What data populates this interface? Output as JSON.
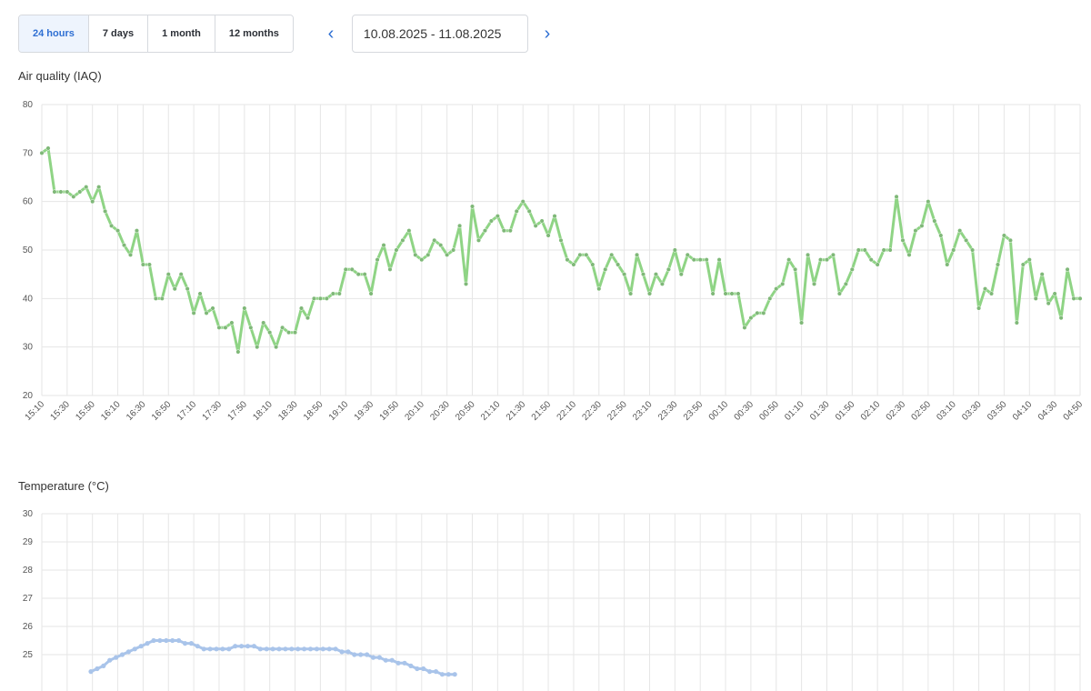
{
  "toolbar": {
    "ranges": [
      {
        "label": "24 hours",
        "active": true
      },
      {
        "label": "7 days",
        "active": false
      },
      {
        "label": "1 month",
        "active": false
      },
      {
        "label": "12 months",
        "active": false
      }
    ],
    "prev_icon": "chevron-left-icon",
    "next_icon": "chevron-right-icon",
    "date_range": "10.08.2025 - 11.08.2025"
  },
  "colors": {
    "accent": "#2e6fd3",
    "iaq_line": "#8fd485",
    "iaq_marker": "#7fb878",
    "temp_line": "#a9c4ea",
    "grid": "#e6e6e6"
  },
  "chart_data": [
    {
      "type": "line",
      "title": "Air quality (IAQ)",
      "ylim": [
        20,
        80
      ],
      "yticks": [
        20,
        30,
        40,
        50,
        60,
        70,
        80
      ],
      "grid": true,
      "xtick_labels": [
        "15:10",
        "15:30",
        "15:50",
        "16:10",
        "16:30",
        "16:50",
        "17:10",
        "17:30",
        "17:50",
        "18:10",
        "18:30",
        "18:50",
        "19:10",
        "19:30",
        "19:50",
        "20:10",
        "20:30",
        "20:50",
        "21:10",
        "21:30",
        "21:50",
        "22:10",
        "22:30",
        "22:50",
        "23:10",
        "23:30",
        "23:50",
        "00:10",
        "00:30",
        "00:50",
        "01:10",
        "01:30",
        "01:50",
        "02:10",
        "02:30",
        "02:50",
        "03:10",
        "03:30",
        "03:50",
        "04:10",
        "04:30",
        "04:50"
      ],
      "series": [
        {
          "values": [
            70,
            71,
            62,
            62,
            62,
            61,
            62,
            63,
            60,
            63,
            58,
            55,
            54,
            51,
            49,
            54,
            47,
            47,
            40,
            40,
            45,
            42,
            45,
            42,
            37,
            41,
            37,
            38,
            34,
            34,
            35,
            29,
            38,
            34,
            30,
            35,
            33,
            30,
            34,
            33,
            33,
            38,
            36,
            40,
            40,
            40,
            41,
            41,
            46,
            46,
            45,
            45,
            41,
            48,
            51,
            46,
            50,
            52,
            54,
            49,
            48,
            49,
            52,
            51,
            49,
            50,
            55,
            43,
            59,
            52,
            54,
            56,
            57,
            54,
            54,
            58,
            60,
            58,
            55,
            56,
            53,
            57,
            52,
            48,
            47,
            49,
            49,
            47,
            42,
            46,
            49,
            47,
            45,
            41,
            49,
            45,
            41,
            45,
            43,
            46,
            50,
            45,
            49,
            48,
            48,
            48,
            41,
            48,
            41,
            41,
            41,
            34,
            36,
            37,
            37,
            40,
            42,
            43,
            48,
            46,
            35,
            49,
            43,
            48,
            48,
            49,
            41,
            43,
            46,
            50,
            50,
            48,
            47,
            50,
            50,
            61,
            52,
            49,
            54,
            55,
            60,
            56,
            53,
            47,
            50,
            54,
            52,
            50,
            38,
            42,
            41,
            47,
            53,
            52,
            35,
            47,
            48,
            40,
            45,
            39,
            41,
            36,
            46,
            40,
            40
          ]
        }
      ]
    },
    {
      "type": "line",
      "title": "Temperature (°C)",
      "ylim": [
        20,
        30
      ],
      "yticks": [
        25,
        26,
        27,
        28,
        29,
        30
      ],
      "grid": true,
      "series": [
        {
          "values": [
            24.4,
            24.5,
            24.6,
            24.8,
            24.9,
            25.0,
            25.1,
            25.2,
            25.3,
            25.4,
            25.5,
            25.5,
            25.5,
            25.5,
            25.5,
            25.4,
            25.4,
            25.3,
            25.2,
            25.2,
            25.2,
            25.2,
            25.2,
            25.3,
            25.3,
            25.3,
            25.3,
            25.2,
            25.2,
            25.2,
            25.2,
            25.2,
            25.2,
            25.2,
            25.2,
            25.2,
            25.2,
            25.2,
            25.2,
            25.2,
            25.1,
            25.1,
            25.0,
            25.0,
            25.0,
            24.9,
            24.9,
            24.8,
            24.8,
            24.7,
            24.7,
            24.6,
            24.5,
            24.5,
            24.4,
            24.4,
            24.3,
            24.3,
            24.3
          ]
        }
      ]
    }
  ]
}
